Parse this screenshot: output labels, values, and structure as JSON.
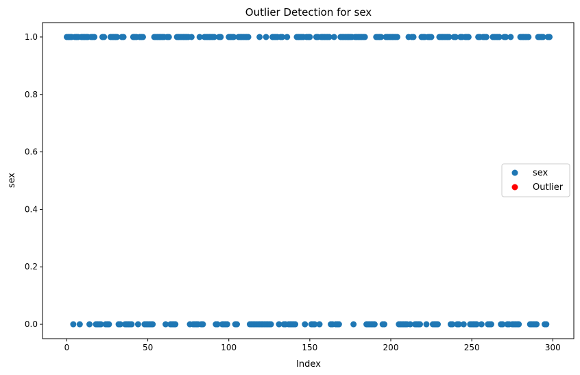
{
  "chart_data": {
    "type": "scatter",
    "title": "Outlier Detection for sex",
    "xlabel": "Index",
    "ylabel": "sex",
    "xlim": [
      -15,
      313
    ],
    "ylim": [
      -0.05,
      1.05
    ],
    "xticks": [
      0,
      50,
      100,
      150,
      200,
      250,
      300
    ],
    "yticks": [
      0.0,
      0.2,
      0.4,
      0.6,
      0.8,
      1.0
    ],
    "xtick_labels": [
      "0",
      "50",
      "100",
      "150",
      "200",
      "250",
      "300"
    ],
    "ytick_labels": [
      "0.0",
      "0.2",
      "0.4",
      "0.6",
      "0.8",
      "1.0"
    ],
    "grid": false,
    "legend_position": "center-right",
    "series": [
      {
        "name": "sex",
        "color": "#1f77b4",
        "x_zero": [
          4,
          8,
          14,
          18,
          19,
          20,
          21,
          24,
          25,
          26,
          32,
          33,
          36,
          37,
          38,
          39,
          40,
          44,
          48,
          49,
          50,
          51,
          52,
          53,
          61,
          64,
          65,
          66,
          67,
          76,
          78,
          79,
          80,
          81,
          83,
          84,
          92,
          93,
          96,
          97,
          98,
          99,
          104,
          105,
          113,
          114,
          115,
          116,
          117,
          118,
          119,
          120,
          121,
          122,
          123,
          124,
          125,
          126,
          131,
          134,
          135,
          137,
          138,
          139,
          140,
          141,
          147,
          151,
          152,
          153,
          156,
          163,
          164,
          166,
          167,
          168,
          177,
          185,
          186,
          187,
          188,
          189,
          190,
          195,
          196,
          205,
          206,
          207,
          208,
          209,
          210,
          212,
          215,
          216,
          217,
          218,
          222,
          226,
          227,
          228,
          229,
          237,
          238,
          241,
          242,
          245,
          249,
          250,
          251,
          252,
          253,
          256,
          260,
          261,
          262,
          268,
          269,
          272,
          273,
          275,
          276,
          277,
          278,
          279,
          286,
          287,
          288,
          289,
          290,
          295,
          296
        ],
        "x_one": [
          0,
          1,
          2,
          3,
          5,
          6,
          7,
          9,
          10,
          11,
          12,
          13,
          15,
          16,
          17,
          22,
          23,
          27,
          28,
          29,
          30,
          31,
          34,
          35,
          41,
          42,
          43,
          45,
          46,
          47,
          54,
          55,
          56,
          57,
          58,
          59,
          60,
          62,
          63,
          68,
          69,
          70,
          71,
          72,
          73,
          74,
          75,
          77,
          82,
          85,
          86,
          87,
          88,
          89,
          90,
          91,
          94,
          95,
          100,
          101,
          102,
          103,
          106,
          107,
          108,
          109,
          110,
          111,
          112,
          119,
          123,
          127,
          128,
          129,
          130,
          132,
          133,
          136,
          142,
          143,
          144,
          145,
          146,
          148,
          149,
          150,
          154,
          155,
          157,
          158,
          159,
          160,
          161,
          162,
          165,
          169,
          170,
          171,
          172,
          173,
          174,
          175,
          176,
          178,
          179,
          180,
          181,
          182,
          183,
          184,
          191,
          192,
          193,
          194,
          197,
          198,
          199,
          200,
          201,
          202,
          203,
          204,
          211,
          213,
          214,
          219,
          220,
          221,
          223,
          224,
          225,
          230,
          231,
          232,
          233,
          234,
          235,
          236,
          239,
          240,
          243,
          244,
          246,
          247,
          248,
          254,
          255,
          257,
          258,
          259,
          263,
          264,
          265,
          266,
          267,
          270,
          271,
          274,
          280,
          281,
          282,
          283,
          284,
          285,
          291,
          292,
          293,
          294,
          297,
          298
        ]
      },
      {
        "name": "Outlier",
        "color": "#ff0000",
        "x_zero": [],
        "x_one": []
      }
    ]
  }
}
